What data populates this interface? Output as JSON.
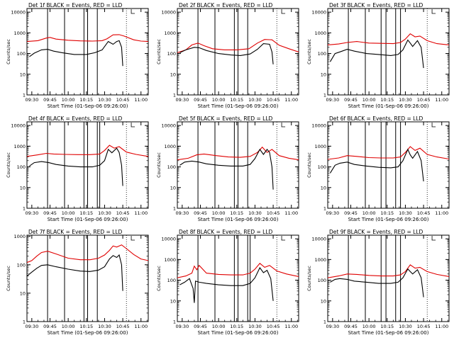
{
  "page": {
    "background": "#ffffff"
  },
  "colors": {
    "events": "#000000",
    "lld": "#e00000",
    "axis": "#000000"
  },
  "chart_data": {
    "type": "line",
    "layout": "3x3 grid",
    "shared": {
      "xlabel": "Start Time (01-Sep-06 09:26:00)",
      "ylabel": "Counts/sec",
      "x_ticks": [
        "09:30",
        "09:45",
        "10:00",
        "10:15",
        "10:30",
        "10:45",
        "11:00"
      ],
      "x_tick_minutes": [
        0,
        15,
        30,
        45,
        60,
        75,
        90
      ],
      "x_range_minutes_after_0930": [
        -4,
        96
      ],
      "y_scale": "log",
      "series_names": [
        "Events (BLACK)",
        "LLD (RED)"
      ]
    },
    "panels": [
      {
        "title": "Det 1f BLACK = Events, RED = LLD",
        "ytick_labels": [
          "1",
          "10",
          "100",
          "1000",
          "10000"
        ],
        "ylim": [
          1,
          15000
        ],
        "vlines_solid": [
          13,
          27,
          43,
          46,
          54
        ],
        "vlines_dotted": [
          78
        ],
        "series": [
          {
            "name": "LLD",
            "color": "#e00000",
            "x": [
              -4,
              5,
              12,
              15,
              20,
              30,
              40,
              50,
              58,
              62,
              67,
              72,
              76,
              84,
              90,
              96
            ],
            "y": [
              380,
              420,
              560,
              600,
              500,
              440,
              410,
              400,
              420,
              520,
              800,
              820,
              700,
              460,
              400,
              380
            ]
          },
          {
            "name": "Events",
            "color": "#000000",
            "x": [
              -2,
              2,
              8,
              13,
              18,
              25,
              35,
              45,
              52,
              58,
              63,
              67,
              70,
              72,
              74,
              75
            ],
            "y": [
              70,
              105,
              150,
              160,
              130,
              110,
              90,
              90,
              110,
              150,
              380,
              280,
              380,
              420,
              200,
              25
            ]
          }
        ]
      },
      {
        "title": "Det 2f BLACK = Events, RED = LLD",
        "ytick_labels": [
          "1",
          "10",
          "100",
          "1000",
          "10000"
        ],
        "ylim": [
          1,
          15000
        ],
        "vlines_solid": [
          13,
          27,
          43,
          46,
          54
        ],
        "vlines_dotted": [
          78
        ],
        "series": [
          {
            "name": "LLD",
            "color": "#e00000",
            "x": [
              -4,
              3,
              8,
              13,
              18,
              25,
              35,
              45,
              55,
              62,
              68,
              74,
              80,
              88,
              96
            ],
            "y": [
              110,
              150,
              260,
              320,
              240,
              170,
              150,
              150,
              170,
              320,
              480,
              460,
              250,
              170,
              120
            ]
          },
          {
            "name": "Events",
            "color": "#000000",
            "x": [
              -2,
              3,
              10,
              14,
              20,
              30,
              40,
              48,
              56,
              62,
              67,
              72,
              74,
              75
            ],
            "y": [
              110,
              150,
              200,
              190,
              140,
              100,
              85,
              80,
              95,
              160,
              300,
              280,
              120,
              30
            ]
          }
        ]
      },
      {
        "title": "Det 3f BLACK = Events, RED = LLD",
        "ytick_labels": [
          "1",
          "10",
          "100",
          "1000",
          "10000"
        ],
        "ylim": [
          1,
          15000
        ],
        "vlines_solid": [
          13,
          27,
          40,
          44,
          52,
          56
        ],
        "vlines_dotted": [
          78
        ],
        "series": [
          {
            "name": "LLD",
            "color": "#e00000",
            "x": [
              -4,
              5,
              12,
              20,
              30,
              40,
              50,
              56,
              60,
              64,
              68,
              72,
              78,
              86,
              96
            ],
            "y": [
              260,
              290,
              340,
              380,
              320,
              310,
              300,
              340,
              500,
              900,
              640,
              700,
              420,
              300,
              260
            ]
          },
          {
            "name": "Events",
            "color": "#000000",
            "x": [
              -2,
              2,
              6,
              12,
              18,
              28,
              38,
              48,
              54,
              58,
              62,
              64,
              66,
              70,
              73,
              75
            ],
            "y": [
              40,
              100,
              120,
              160,
              130,
              100,
              90,
              80,
              90,
              150,
              450,
              320,
              220,
              420,
              200,
              20
            ]
          }
        ]
      },
      {
        "title": "Det 4f BLACK = Events, RED = LLD",
        "ytick_labels": [
          "1",
          "10",
          "100",
          "1000",
          "10000"
        ],
        "ylim": [
          1,
          15000
        ],
        "vlines_solid": [
          13,
          27,
          43,
          46,
          54,
          56
        ],
        "vlines_dotted": [
          78
        ],
        "series": [
          {
            "name": "LLD",
            "color": "#e00000",
            "x": [
              -4,
              5,
              12,
              18,
              28,
              38,
              48,
              56,
              60,
              64,
              68,
              72,
              78,
              86,
              96
            ],
            "y": [
              320,
              380,
              450,
              420,
              400,
              390,
              390,
              420,
              620,
              1100,
              800,
              950,
              520,
              400,
              320
            ]
          },
          {
            "name": "Events",
            "color": "#000000",
            "x": [
              -2,
              2,
              8,
              14,
              20,
              30,
              40,
              50,
              56,
              60,
              63,
              66,
              70,
              72,
              74,
              75
            ],
            "y": [
              110,
              160,
              180,
              160,
              130,
              110,
              100,
              100,
              120,
              200,
              700,
              480,
              800,
              500,
              120,
              12
            ]
          }
        ]
      },
      {
        "title": "Det 5f BLACK = Events, RED = LLD",
        "ytick_labels": [
          "1",
          "10",
          "100",
          "1000",
          "10000"
        ],
        "ylim": [
          1,
          15000
        ],
        "vlines_solid": [
          13,
          27,
          43,
          46,
          54
        ],
        "vlines_dotted": [
          78
        ],
        "series": [
          {
            "name": "LLD",
            "color": "#e00000",
            "x": [
              -4,
              5,
              12,
              18,
              28,
              38,
              48,
              56,
              62,
              66,
              70,
              74,
              80,
              88,
              96
            ],
            "y": [
              220,
              260,
              380,
              420,
              350,
              300,
              290,
              320,
              500,
              900,
              500,
              700,
              350,
              260,
              220
            ]
          },
          {
            "name": "Events",
            "color": "#000000",
            "x": [
              -2,
              2,
              8,
              14,
              20,
              30,
              40,
              50,
              56,
              60,
              64,
              67,
              70,
              72,
              74,
              75
            ],
            "y": [
              120,
              170,
              190,
              170,
              140,
              120,
              110,
              110,
              130,
              250,
              700,
              400,
              700,
              500,
              100,
              8
            ]
          }
        ]
      },
      {
        "title": "Det 6f BLACK = Events, RED = LLD",
        "ytick_labels": [
          "1",
          "10",
          "100",
          "1000",
          "10000"
        ],
        "ylim": [
          1,
          15000
        ],
        "vlines_solid": [
          13,
          27,
          40,
          44,
          52,
          56
        ],
        "vlines_dotted": [
          78
        ],
        "series": [
          {
            "name": "LLD",
            "color": "#e00000",
            "x": [
              -4,
              5,
              12,
              20,
              30,
              40,
              50,
              56,
              60,
              64,
              68,
              72,
              78,
              86,
              96
            ],
            "y": [
              230,
              270,
              350,
              320,
              280,
              270,
              270,
              300,
              500,
              950,
              620,
              800,
              400,
              300,
              240
            ]
          },
          {
            "name": "Events",
            "color": "#000000",
            "x": [
              -2,
              2,
              6,
              12,
              18,
              28,
              38,
              48,
              54,
              58,
              62,
              64,
              66,
              70,
              73,
              75
            ],
            "y": [
              50,
              120,
              150,
              170,
              130,
              110,
              95,
              90,
              100,
              200,
              700,
              380,
              260,
              550,
              200,
              20
            ]
          }
        ]
      },
      {
        "title": "Det 7f BLACK = Events, RED = LLD",
        "ytick_labels": [
          "1",
          "10",
          "100",
          "1000"
        ],
        "ylim": [
          1,
          1100
        ],
        "vlines_solid": [
          13,
          27,
          43,
          46,
          54
        ],
        "vlines_dotted": [
          78
        ],
        "series": [
          {
            "name": "LLD",
            "color": "#e00000",
            "x": [
              -4,
              0,
              4,
              8,
              13,
              20,
              30,
              40,
              48,
              55,
              60,
              64,
              67,
              70,
              74,
              78,
              84,
              90,
              96
            ],
            "y": [
              120,
              140,
              200,
              270,
              300,
              240,
              170,
              150,
              150,
              170,
              220,
              320,
              460,
              420,
              500,
              370,
              230,
              160,
              140
            ]
          },
          {
            "name": "Events",
            "color": "#000000",
            "x": [
              -4,
              0,
              4,
              8,
              13,
              20,
              30,
              40,
              48,
              55,
              60,
              64,
              67,
              70,
              72,
              74,
              75
            ],
            "y": [
              40,
              55,
              75,
              95,
              100,
              85,
              70,
              60,
              58,
              65,
              85,
              160,
              210,
              180,
              220,
              100,
              12
            ]
          }
        ]
      },
      {
        "title": "Det 8f BLACK = Events, RED = LLD",
        "ytick_labels": [
          "1",
          "10",
          "100",
          "1000",
          "10000"
        ],
        "ylim": [
          1,
          15000
        ],
        "vlines_solid": [
          13,
          27,
          43,
          46,
          54,
          56
        ],
        "vlines_dotted": [
          78
        ],
        "series": [
          {
            "name": "LLD",
            "color": "#e00000",
            "x": [
              -4,
              3,
              8,
              10,
              12,
              14,
              20,
              30,
              40,
              50,
              56,
              60,
              64,
              68,
              72,
              78,
              86,
              96
            ],
            "y": [
              130,
              160,
              220,
              480,
              320,
              520,
              220,
              190,
              180,
              180,
              220,
              340,
              650,
              420,
              520,
              280,
              200,
              150
            ]
          },
          {
            "name": "Events",
            "color": "#000000",
            "x": [
              -2,
              2,
              6,
              9,
              10,
              11,
              14,
              20,
              30,
              40,
              50,
              56,
              60,
              64,
              67,
              70,
              73,
              75
            ],
            "y": [
              60,
              80,
              120,
              40,
              8,
              90,
              80,
              70,
              60,
              55,
              55,
              70,
              130,
              400,
              230,
              300,
              120,
              10
            ]
          }
        ]
      },
      {
        "title": "Det 9f BLACK = Events, RED = LLD",
        "ytick_labels": [
          "1",
          "10",
          "100",
          "1000",
          "10000"
        ],
        "ylim": [
          1,
          15000
        ],
        "vlines_solid": [
          13,
          27,
          40,
          44,
          52,
          56
        ],
        "vlines_dotted": [
          78
        ],
        "series": [
          {
            "name": "LLD",
            "color": "#e00000",
            "x": [
              -4,
              5,
              12,
              20,
              30,
              40,
              50,
              56,
              60,
              64,
              68,
              72,
              78,
              86,
              96
            ],
            "y": [
              130,
              160,
              200,
              190,
              170,
              160,
              160,
              180,
              260,
              550,
              380,
              420,
              260,
              190,
              150
            ]
          },
          {
            "name": "Events",
            "color": "#000000",
            "x": [
              -2,
              2,
              6,
              12,
              18,
              28,
              38,
              48,
              54,
              58,
              62,
              64,
              66,
              70,
              73,
              75
            ],
            "y": [
              80,
              110,
              120,
              110,
              90,
              80,
              70,
              70,
              80,
              130,
              350,
              260,
              200,
              320,
              130,
              15
            ]
          }
        ]
      }
    ]
  }
}
